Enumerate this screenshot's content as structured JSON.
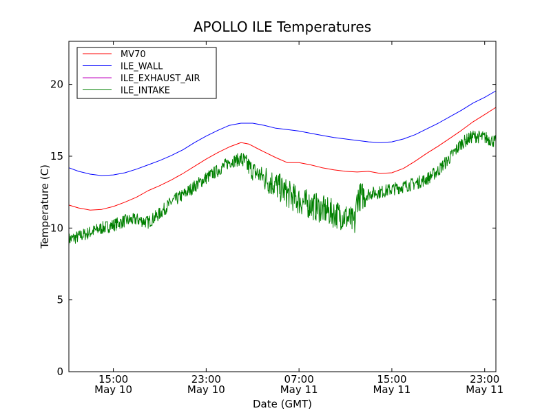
{
  "chart_data": {
    "type": "line",
    "title": "APOLLO ILE Temperatures",
    "xlabel": "Date (GMT)",
    "ylabel": "Temperature (C)",
    "ylim": [
      0,
      23
    ],
    "yticks": [
      0,
      5,
      10,
      15,
      20
    ],
    "xlim": [
      "May 10 11:10",
      "May 11 23:58"
    ],
    "xticks": [
      {
        "time": "May 10 15:00",
        "label": "15:00",
        "sublabel": "May 10"
      },
      {
        "time": "May 10 23:00",
        "label": "23:00",
        "sublabel": "May 10"
      },
      {
        "time": "May 11 07:00",
        "label": "07:00",
        "sublabel": "May 11"
      },
      {
        "time": "May 11 15:00",
        "label": "15:00",
        "sublabel": "May 11"
      },
      {
        "time": "May 11 23:00",
        "label": "23:00",
        "sublabel": "May 11"
      }
    ],
    "grid": false,
    "legend_position": "top-left",
    "series": [
      {
        "name": "MV70",
        "color": "#ff0000",
        "x": [
          "May 10 11:10",
          "May 10 12:00",
          "May 10 13:00",
          "May 10 14:00",
          "May 10 15:00",
          "May 10 16:00",
          "May 10 17:00",
          "May 10 18:00",
          "May 10 19:00",
          "May 10 20:00",
          "May 10 21:00",
          "May 10 22:00",
          "May 10 23:00",
          "May 11 00:00",
          "May 11 01:00",
          "May 11 02:00",
          "May 11 02:40",
          "May 11 03:30",
          "May 11 04:00",
          "May 11 05:00",
          "May 11 06:00",
          "May 11 07:00",
          "May 11 08:00",
          "May 11 09:00",
          "May 11 10:00",
          "May 11 11:00",
          "May 11 12:00",
          "May 11 13:00",
          "May 11 14:00",
          "May 11 15:00",
          "May 11 16:00",
          "May 11 17:00",
          "May 11 18:00",
          "May 11 19:00",
          "May 11 20:00",
          "May 11 21:00",
          "May 11 22:00",
          "May 11 23:00",
          "May 11 23:58"
        ],
        "values": [
          11.6,
          11.4,
          11.25,
          11.3,
          11.5,
          11.8,
          12.15,
          12.6,
          12.95,
          13.35,
          13.8,
          14.3,
          14.8,
          15.25,
          15.65,
          15.95,
          15.85,
          15.5,
          15.3,
          14.9,
          14.55,
          14.55,
          14.4,
          14.2,
          14.05,
          13.95,
          13.9,
          13.95,
          13.8,
          13.85,
          14.15,
          14.65,
          15.2,
          15.7,
          16.25,
          16.8,
          17.4,
          17.9,
          18.4
        ]
      },
      {
        "name": "ILE_WALL",
        "color": "#0000ff",
        "x": [
          "May 10 11:10",
          "May 10 12:00",
          "May 10 13:00",
          "May 10 14:00",
          "May 10 15:00",
          "May 10 16:00",
          "May 10 17:00",
          "May 10 18:00",
          "May 10 19:00",
          "May 10 20:00",
          "May 10 21:00",
          "May 10 22:00",
          "May 10 23:00",
          "May 11 00:00",
          "May 11 01:00",
          "May 11 02:00",
          "May 11 03:00",
          "May 11 04:00",
          "May 11 05:00",
          "May 11 06:00",
          "May 11 07:00",
          "May 11 08:00",
          "May 11 09:00",
          "May 11 10:00",
          "May 11 11:00",
          "May 11 12:00",
          "May 11 13:00",
          "May 11 14:00",
          "May 11 15:00",
          "May 11 16:00",
          "May 11 17:00",
          "May 11 18:00",
          "May 11 19:00",
          "May 11 20:00",
          "May 11 21:00",
          "May 11 22:00",
          "May 11 23:00",
          "May 11 23:58"
        ],
        "values": [
          14.2,
          13.95,
          13.75,
          13.65,
          13.7,
          13.85,
          14.1,
          14.4,
          14.7,
          15.05,
          15.45,
          15.95,
          16.4,
          16.8,
          17.15,
          17.3,
          17.3,
          17.15,
          16.95,
          16.85,
          16.75,
          16.6,
          16.45,
          16.3,
          16.2,
          16.1,
          16.0,
          15.95,
          16.0,
          16.2,
          16.5,
          16.9,
          17.3,
          17.75,
          18.2,
          18.7,
          19.1,
          19.55
        ]
      },
      {
        "name": "ILE_EXHAUST_AIR",
        "color": "#bf00bf",
        "x": [],
        "values": []
      },
      {
        "name": "ILE_INTAKE",
        "color": "#008000",
        "x": [
          "May 10 11:10",
          "May 10 12:00",
          "May 10 13:00",
          "May 10 14:00",
          "May 10 15:00",
          "May 10 16:00",
          "May 10 17:00",
          "May 10 18:00",
          "May 10 19:00",
          "May 10 20:00",
          "May 10 21:00",
          "May 10 22:00",
          "May 10 23:00",
          "May 11 00:00",
          "May 11 01:00",
          "May 11 02:00",
          "May 11 03:00",
          "May 11 04:00",
          "May 11 05:00",
          "May 11 06:00",
          "May 11 07:00",
          "May 11 08:00",
          "May 11 09:00",
          "May 11 10:00",
          "May 11 11:00",
          "May 11 11:50",
          "May 11 12:00",
          "May 11 13:00",
          "May 11 14:00",
          "May 11 15:00",
          "May 11 16:00",
          "May 11 17:00",
          "May 11 18:00",
          "May 11 19:00",
          "May 11 20:00",
          "May 11 21:00",
          "May 11 22:00",
          "May 11 23:00",
          "May 11 23:58"
        ],
        "values": [
          9.2,
          9.4,
          9.7,
          10.0,
          10.2,
          10.5,
          10.6,
          10.4,
          11.0,
          11.8,
          12.3,
          12.9,
          13.5,
          14.0,
          14.6,
          14.8,
          14.0,
          13.5,
          13.0,
          12.4,
          11.9,
          11.6,
          11.3,
          11.0,
          10.8,
          10.3,
          12.1,
          12.4,
          12.5,
          12.7,
          12.9,
          13.1,
          13.4,
          14.0,
          14.9,
          15.9,
          16.4,
          16.3,
          16.0
        ]
      }
    ]
  }
}
